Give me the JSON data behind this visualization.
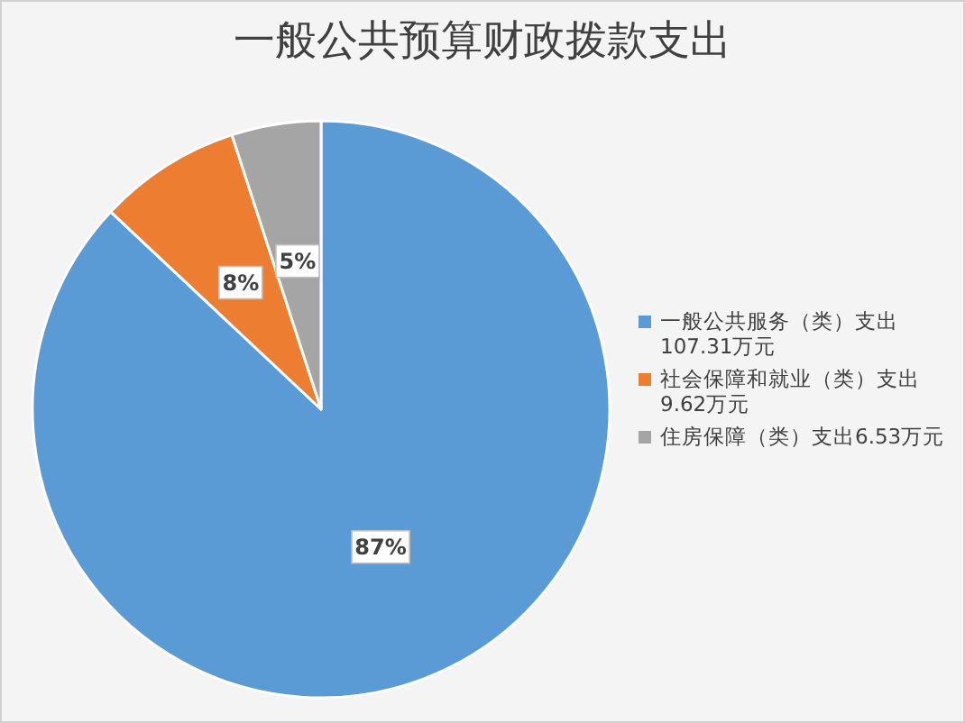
{
  "chart_data": {
    "type": "pie",
    "title": "一般公共预算财政拨款支出",
    "categories": [
      "一般公共服务（类）支出107.31万元",
      "社会保障和就业（类）支出9.62万元",
      "住房保障（类）支出6.53万元"
    ],
    "values": [
      87,
      8,
      5
    ],
    "value_labels": [
      "87%",
      "8%",
      "5%"
    ],
    "colors": [
      "#5b9bd5",
      "#ed7d31",
      "#a5a5a5"
    ],
    "legend": "right"
  }
}
